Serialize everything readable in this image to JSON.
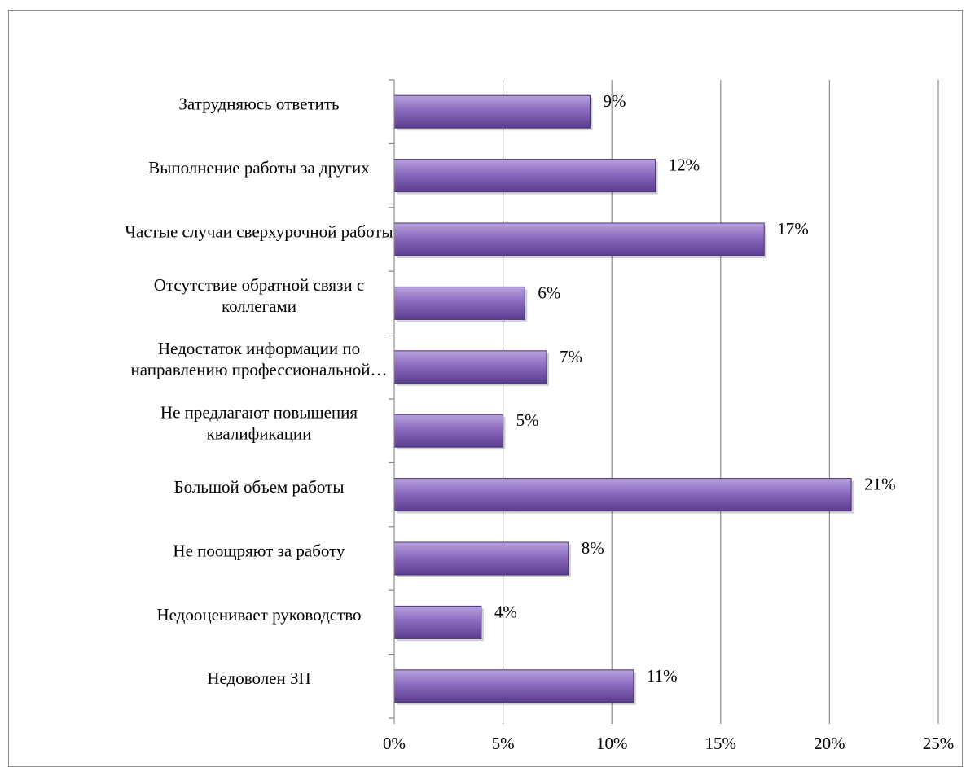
{
  "chart_data": {
    "type": "bar",
    "orientation": "horizontal",
    "categories": [
      [
        "Затрудняюсь ответить"
      ],
      [
        "Выполнение работы за других"
      ],
      [
        "Частые случаи сверхурочной работы"
      ],
      [
        "Отсутствие обратной связи с",
        "коллегами"
      ],
      [
        "Недостаток информации по",
        "направлению профессиональной…"
      ],
      [
        "Не предлагают повышения",
        "квалификации"
      ],
      [
        "Большой объем работы"
      ],
      [
        "Не поощряют за работу"
      ],
      [
        "Недооценивает руководство"
      ],
      [
        "Недоволен ЗП"
      ]
    ],
    "values": [
      9,
      12,
      17,
      6,
      7,
      5,
      21,
      8,
      4,
      11
    ],
    "value_labels": [
      "9%",
      "12%",
      "17%",
      "6%",
      "7%",
      "5%",
      "21%",
      "8%",
      "4%",
      "11%"
    ],
    "xlim": [
      0,
      25
    ],
    "xticks": [
      0,
      5,
      10,
      15,
      20,
      25
    ],
    "xtick_labels": [
      "0%",
      "5%",
      "10%",
      "15%",
      "20%",
      "25%"
    ],
    "grid": true,
    "legend": "none",
    "colors": {
      "bar_fill_top": "#b9a2de",
      "bar_fill_mid": "#8a6bbf",
      "bar_fill_bottom": "#5a3c8e",
      "bar_stroke": "#4a2f75",
      "gridline": "#8c8c8c",
      "axis": "#8c8c8c"
    }
  }
}
